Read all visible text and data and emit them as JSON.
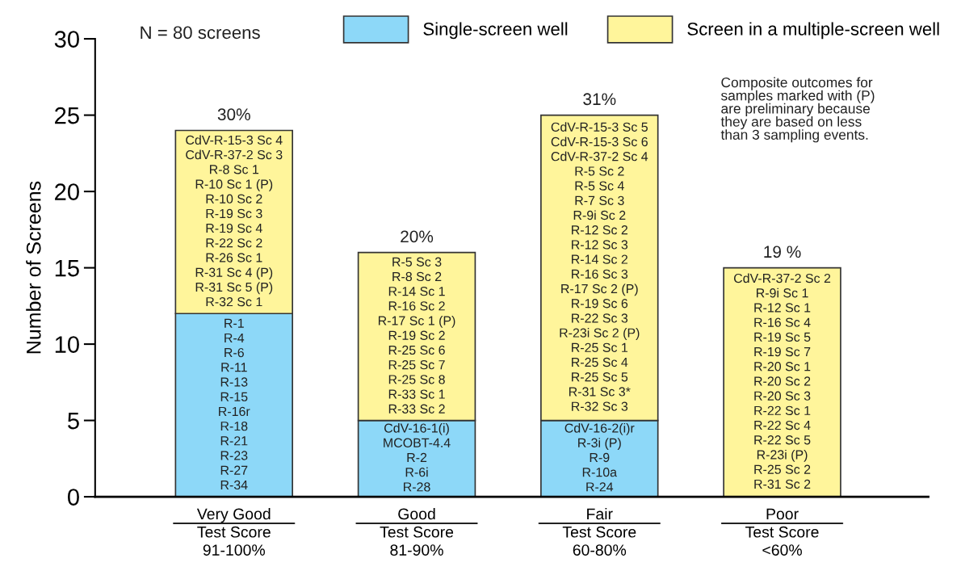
{
  "chart_data": {
    "type": "bar",
    "stacked": true,
    "ylabel": "Number of Screens",
    "ylim": [
      0,
      30
    ],
    "yticks": [
      0,
      5,
      10,
      15,
      20,
      25,
      30
    ],
    "grid": false,
    "legend": "top",
    "categories": [
      "Very Good\nTest Score\n91-100%",
      "Good\nTest Score\n81-90%",
      "Fair\nTest Score\n60-80%",
      "Poor\nTest Score\n<60%"
    ],
    "series": [
      {
        "name": "Single-screen well",
        "color": "#8dd8f8",
        "values": [
          12,
          5,
          5,
          0
        ],
        "value_labels": [
          "R-1\nR-4\nR-6\nR-11\nR-13\nR-15\nR-16r\nR-18\nR-21\nR-23\nR-27\nR-34",
          "CdV-16-1(i)\nMCOBT-4.4\nR-2\nR-6i\nR-28",
          "CdV-16-2(i)r\nR-3i (P)\nR-9\nR-10a\nR-24",
          null
        ]
      },
      {
        "name": "Screen in a multiple-screen well",
        "color": "#fff59b",
        "values": [
          12,
          11,
          20,
          15
        ],
        "value_labels": [
          "CdV-R-15-3 Sc 4\nCdV-R-37-2 Sc 3\nR-8 Sc 1\nR-10 Sc 1 (P)\nR-10 Sc 2\nR-19 Sc 3\nR-19 Sc 4\nR-22 Sc 2\nR-26 Sc 1\nR-31 Sc 4 (P)\nR-31 Sc 5 (P)\nR-32 Sc 1",
          "R-5 Sc 3\nR-8 Sc 2\nR-14 Sc 1\nR-16 Sc 2\nR-17 Sc 1 (P)\nR-19 Sc 2\nR-25 Sc 6\nR-25 Sc 7\nR-25 Sc 8\nR-33 Sc 1\nR-33 Sc 2",
          "CdV-R-15-3 Sc 5\nCdV-R-15-3 Sc 6\nCdV-R-37-2 Sc 4\nR-5 Sc 2\nR-5 Sc 4\nR-7 Sc 3\nR-9i Sc 2\nR-12 Sc 2\nR-12 Sc 3\nR-14 Sc 2\nR-16 Sc 3\nR-17 Sc 2 (P)\nR-19 Sc 6\nR-22 Sc 3\nR-23i Sc 2 (P)\nR-25 Sc 1\nR-25 Sc 4\nR-25 Sc 5\nR-31 Sc 3*\nR-32 Sc 3",
          "CdV-R-37-2 Sc 2\nR-9i Sc 1\nR-12 Sc 1\nR-16 Sc 4\nR-19 Sc 5\nR-19 Sc 7\nR-20 Sc 1\nR-20 Sc 2\nR-20 Sc 3\nR-22 Sc 1\nR-22 Sc 4\nR-22 Sc 5\nR-23i (P)\nR-25 Sc 2\nR-31 Sc 2"
        ]
      }
    ],
    "annotations": [
      {
        "text": "30%",
        "x": "Very Good\nTest Score\n91-100%",
        "y": 24
      },
      {
        "text": "20%",
        "x": "Good\nTest Score\n81-90%",
        "y": 16
      },
      {
        "text": "31%",
        "x": "Fair\nTest Score\n60-80%",
        "y": 25
      },
      {
        "text": "19 %",
        "x": "Poor\nTest Score\n<60%",
        "y": 15
      },
      "N = 80 screens",
      "Composite outcomes for\nsamples marked with (P)\nare preliminary because\nthey are based on less\nthan 3 sampling events."
    ]
  }
}
